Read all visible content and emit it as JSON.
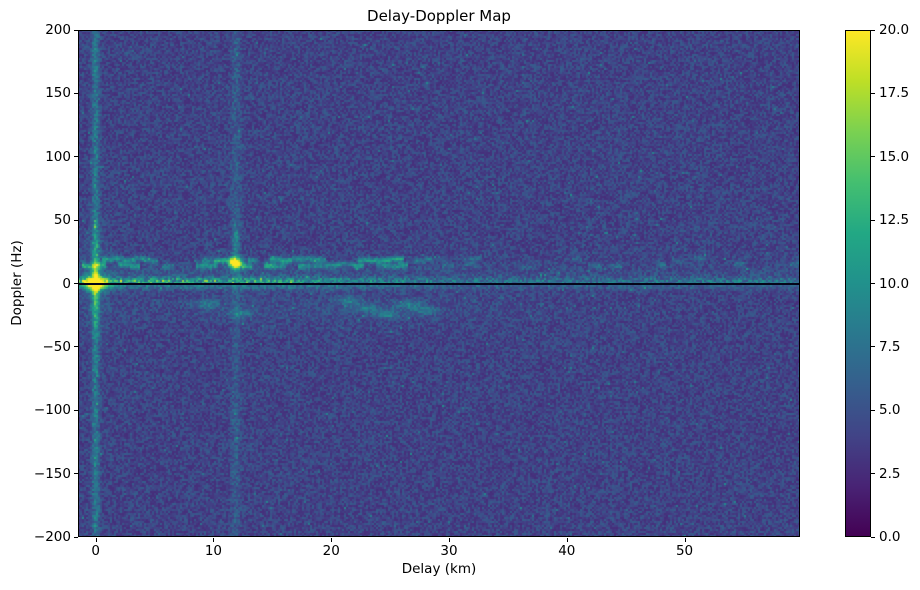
{
  "window": {
    "background": "#ffffff",
    "text_color": "#000000"
  },
  "chart_data": {
    "type": "heatmap",
    "title": "Delay-Doppler Map",
    "xlabel": "Delay (km)",
    "ylabel": "Doppler (Hz)",
    "xlim": [
      -1.5,
      59.8
    ],
    "ylim": [
      -200,
      200
    ],
    "xticks": [
      0,
      10,
      20,
      30,
      40,
      50
    ],
    "yticks": [
      200,
      150,
      100,
      50,
      0,
      -50,
      -100,
      -150,
      -200
    ],
    "grid": false,
    "legend": "none",
    "colormap": "viridis",
    "colormap_stops": [
      "#440154",
      "#482475",
      "#414487",
      "#355f8d",
      "#2a788e",
      "#21918c",
      "#22a884",
      "#44bf70",
      "#7ad151",
      "#bddf26",
      "#fde725"
    ],
    "value_range": [
      0.0,
      20.0
    ],
    "colorbar_ticks": [
      0.0,
      2.5,
      5.0,
      7.5,
      10.0,
      12.5,
      15.0,
      17.5,
      20.0
    ],
    "axis_color": "#000000",
    "noise": {
      "seed": 42,
      "floor": 2.6,
      "spread": 3.4
    },
    "features": {
      "specular_point": {
        "delay": 0.0,
        "doppler": 0.0,
        "peak": 20.0
      },
      "direct_path_column": {
        "delay": 0.0,
        "level": 7.5
      },
      "target_echo": {
        "delay": 11.9,
        "doppler": 16.5,
        "peak": 19.0
      },
      "target_column": {
        "delay": 11.9,
        "level": 5.5
      },
      "zero_doppler_ridge": {
        "doppler": 2.1,
        "level": 11.0,
        "bright_until_delay": 16
      },
      "zero_doppler_line": {
        "doppler": 0.0,
        "color": "#05051a"
      },
      "interference_band": {
        "doppler_rows": [
          14.6,
          19.2
        ],
        "delay_range": [
          -1.2,
          28.5
        ],
        "level": 11.0
      },
      "echo_blobs": [
        [
          9.5,
          -17
        ],
        [
          12.3,
          -24
        ],
        [
          21.5,
          -14
        ],
        [
          23.0,
          -20
        ],
        [
          24.8,
          -25
        ],
        [
          26.5,
          -17
        ],
        [
          28.0,
          -22
        ]
      ]
    }
  }
}
